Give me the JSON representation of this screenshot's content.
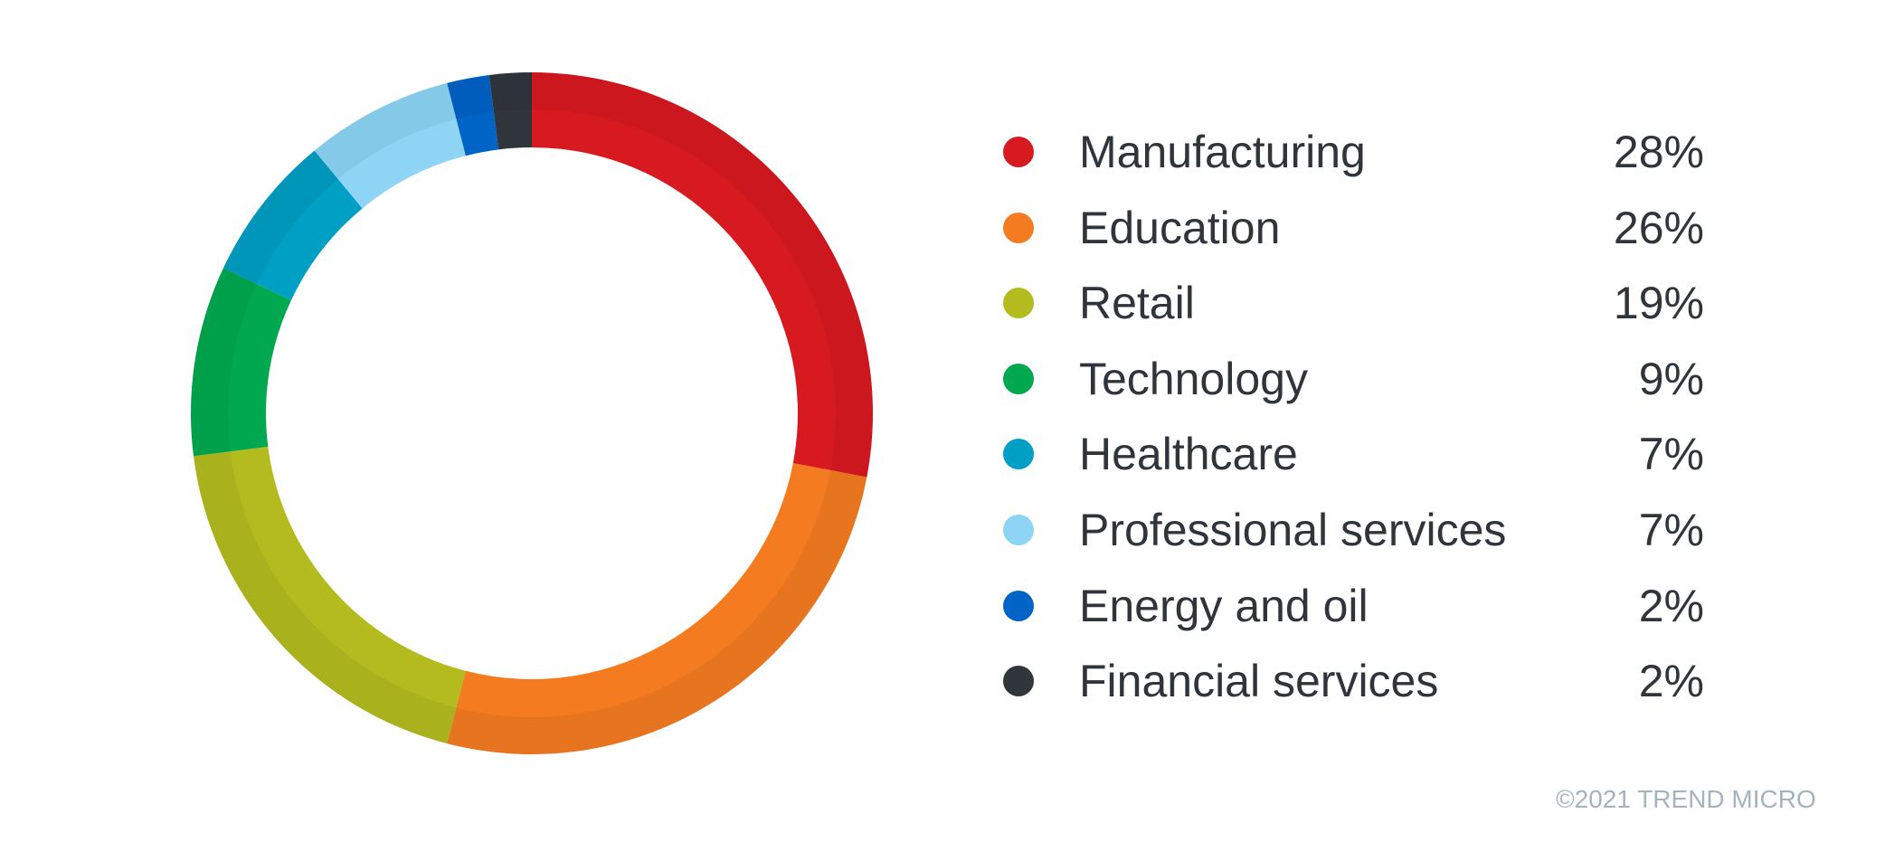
{
  "chart_data": {
    "type": "pie",
    "subtype": "donut",
    "start_angle": "top, clockwise",
    "legend_position": "right",
    "slices": [
      {
        "label": "Manufacturing",
        "value": 28,
        "display": "28%",
        "color": "#d71920"
      },
      {
        "label": "Education",
        "value": 26,
        "display": "26%",
        "color": "#f47b20"
      },
      {
        "label": "Retail",
        "value": 19,
        "display": "19%",
        "color": "#b3bb1e"
      },
      {
        "label": "Technology",
        "value": 9,
        "display": "9%",
        "color": "#00a84f"
      },
      {
        "label": "Healthcare",
        "value": 7,
        "display": "7%",
        "color": "#009fc4"
      },
      {
        "label": "Professional services",
        "value": 7,
        "display": "7%",
        "color": "#8dd4f5"
      },
      {
        "label": "Energy and oil",
        "value": 2,
        "display": "2%",
        "color": "#0063c6"
      },
      {
        "label": "Financial services",
        "value": 2,
        "display": "2%",
        "color": "#30363c"
      }
    ]
  },
  "footer": {
    "copyright": "©2021 TREND MICRO"
  }
}
